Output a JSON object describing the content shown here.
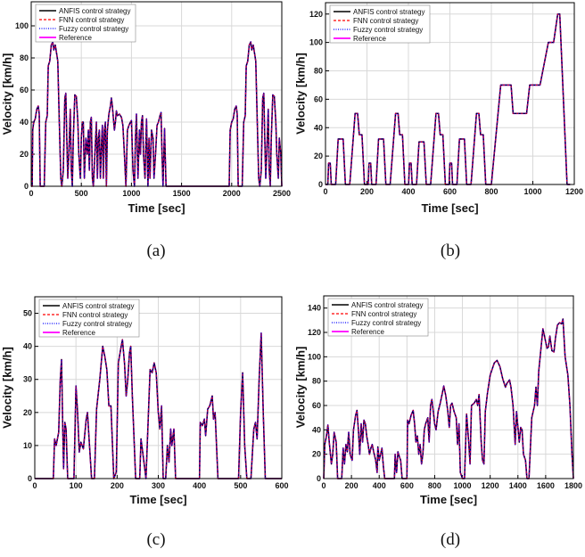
{
  "legend_entries": [
    "ANFIS control strategy",
    "FNN control strategy",
    "Fuzzy control strategy",
    "Reference"
  ],
  "series_colors": {
    "ANFIS control strategy": "#000000",
    "FNN control strategy": "#ff0000",
    "Fuzzy control strategy": "#0000ff",
    "Reference": "#ff00ff"
  },
  "chart_data": [
    {
      "id": "a",
      "caption": "(a)",
      "type": "line",
      "xlabel": "Time [sec]",
      "ylabel": "Velocity [km/h]",
      "xlim": [
        0,
        2500
      ],
      "ylim": [
        0,
        115
      ],
      "xticks": [
        0,
        500,
        1000,
        1500,
        2000,
        2500
      ],
      "yticks": [
        0,
        20,
        40,
        60,
        80,
        100
      ],
      "grid": true,
      "legend": "top-left",
      "note_series": "All four series overlap the same velocity profile",
      "x": [
        0,
        10,
        15,
        25,
        40,
        55,
        70,
        80,
        90,
        130,
        145,
        160,
        170,
        185,
        200,
        215,
        225,
        240,
        255,
        265,
        280,
        295,
        305,
        320,
        335,
        345,
        355,
        365,
        375,
        390,
        400,
        410,
        420,
        435,
        450,
        465,
        475,
        490,
        500,
        510,
        520,
        530,
        545,
        560,
        570,
        580,
        590,
        600,
        610,
        620,
        635,
        650,
        660,
        670,
        680,
        690,
        700,
        710,
        720,
        730,
        740,
        750,
        760,
        775,
        790,
        800,
        810,
        820,
        830,
        840,
        850,
        860,
        880,
        900,
        915,
        930,
        945,
        960,
        975,
        990,
        1000,
        1015,
        1030,
        1040,
        1050,
        1065,
        1080,
        1090,
        1100,
        1110,
        1120,
        1135,
        1150,
        1165,
        1175,
        1185,
        1200,
        1215,
        1225,
        1240,
        1255,
        1270,
        1285,
        1295,
        1305,
        1315,
        1330,
        1345,
        1370,
        1975,
        1985,
        2000,
        2015,
        2030,
        2045,
        2055,
        2065,
        2105,
        2120,
        2135,
        2145,
        2160,
        2175,
        2190,
        2200,
        2215,
        2230,
        2240,
        2255,
        2270,
        2280,
        2295,
        2310,
        2320,
        2330,
        2340,
        2350,
        2365,
        2375,
        2385,
        2395,
        2410,
        2425,
        2440,
        2450,
        2465,
        2475,
        2490,
        2500
      ],
      "y": [
        0,
        0,
        35,
        40,
        42,
        48,
        50,
        45,
        0,
        0,
        40,
        44,
        75,
        78,
        88,
        90,
        85,
        88,
        82,
        78,
        40,
        5,
        0,
        10,
        55,
        58,
        30,
        5,
        20,
        48,
        10,
        0,
        30,
        57,
        56,
        40,
        20,
        5,
        30,
        40,
        40,
        5,
        30,
        20,
        35,
        10,
        40,
        43,
        5,
        0,
        20,
        40,
        5,
        30,
        35,
        5,
        25,
        38,
        5,
        35,
        40,
        0,
        35,
        45,
        50,
        55,
        50,
        42,
        35,
        40,
        47,
        44,
        45,
        43,
        38,
        20,
        0,
        35,
        38,
        40,
        41,
        10,
        0,
        30,
        45,
        5,
        35,
        20,
        40,
        44,
        20,
        5,
        42,
        0,
        30,
        5,
        35,
        30,
        5,
        20,
        38,
        40,
        44,
        46,
        20,
        0,
        36,
        0,
        0,
        0,
        35,
        40,
        42,
        48,
        50,
        45,
        0,
        0,
        40,
        44,
        75,
        78,
        88,
        90,
        85,
        88,
        82,
        78,
        40,
        5,
        0,
        10,
        55,
        58,
        30,
        5,
        20,
        48,
        10,
        0,
        30,
        57,
        56,
        40,
        20,
        5,
        30,
        20,
        0
      ]
    },
    {
      "id": "b",
      "caption": "(b)",
      "type": "line",
      "xlabel": "Time [sec]",
      "ylabel": "Velocity [km/h]",
      "xlim": [
        0,
        1200
      ],
      "ylim": [
        0,
        128
      ],
      "xticks": [
        0,
        200,
        400,
        600,
        800,
        1000,
        1200
      ],
      "yticks": [
        0,
        20,
        40,
        60,
        80,
        100,
        120
      ],
      "grid": true,
      "legend": "top-left",
      "x": [
        0,
        11,
        15,
        23,
        28,
        49,
        61,
        85,
        96,
        117,
        143,
        155,
        163,
        176,
        188,
        195,
        206,
        210,
        218,
        223,
        244,
        256,
        280,
        291,
        312,
        338,
        350,
        358,
        371,
        383,
        390,
        401,
        405,
        413,
        418,
        439,
        451,
        475,
        486,
        507,
        533,
        545,
        553,
        566,
        578,
        585,
        596,
        600,
        608,
        613,
        634,
        646,
        670,
        681,
        702,
        728,
        740,
        748,
        761,
        773,
        800,
        845,
        895,
        905,
        970,
        985,
        1035,
        1075,
        1100,
        1120,
        1130,
        1165,
        1180
      ],
      "y": [
        0,
        0,
        15,
        15,
        0,
        0,
        32,
        32,
        0,
        0,
        50,
        50,
        35,
        35,
        0,
        0,
        0,
        15,
        15,
        0,
        0,
        32,
        32,
        0,
        0,
        50,
        50,
        35,
        35,
        0,
        0,
        0,
        15,
        15,
        0,
        0,
        30,
        30,
        0,
        0,
        50,
        50,
        35,
        35,
        0,
        0,
        0,
        15,
        15,
        0,
        0,
        32,
        32,
        0,
        0,
        50,
        50,
        35,
        35,
        0,
        0,
        70,
        70,
        50,
        50,
        70,
        70,
        100,
        100,
        120,
        120,
        0,
        0
      ]
    },
    {
      "id": "c",
      "caption": "(c)",
      "type": "line",
      "xlabel": "Time [sec]",
      "ylabel": "Velocity [km/h]",
      "xlim": [
        0,
        600
      ],
      "ylim": [
        0,
        55
      ],
      "xticks": [
        0,
        100,
        200,
        300,
        400,
        500,
        600
      ],
      "yticks": [
        0,
        10,
        20,
        30,
        40,
        50
      ],
      "grid": true,
      "legend": "top-left",
      "x": [
        0,
        45,
        48,
        52,
        58,
        62,
        65,
        68,
        70,
        73,
        76,
        80,
        95,
        100,
        104,
        108,
        112,
        118,
        125,
        128,
        132,
        138,
        145,
        150,
        158,
        165,
        170,
        175,
        180,
        185,
        192,
        198,
        203,
        210,
        213,
        218,
        222,
        226,
        230,
        233,
        237,
        245,
        255,
        258,
        262,
        270,
        280,
        285,
        290,
        295,
        300,
        304,
        308,
        312,
        318,
        322,
        326,
        330,
        333,
        338,
        342,
        400,
        402,
        407,
        412,
        415,
        420,
        425,
        431,
        434,
        438,
        445,
        495,
        500,
        505,
        510,
        515,
        525,
        532,
        536,
        540,
        545,
        550,
        555,
        560,
        600
      ],
      "y": [
        0,
        0,
        12,
        10,
        14,
        30,
        36,
        15,
        3,
        17,
        15,
        0,
        0,
        28,
        20,
        8,
        11,
        9,
        18,
        20,
        12,
        0,
        0,
        21,
        30,
        40,
        37,
        33,
        22,
        22,
        0,
        2,
        35,
        40,
        42,
        35,
        25,
        30,
        38,
        40,
        25,
        0,
        0,
        12,
        8,
        0,
        33,
        32,
        35,
        32,
        20,
        15,
        22,
        0,
        0,
        10,
        5,
        15,
        10,
        15,
        0,
        0,
        17,
        16,
        18,
        13,
        21,
        22,
        25,
        18,
        20,
        0,
        0,
        20,
        32,
        10,
        0,
        0,
        15,
        17,
        12,
        30,
        44,
        20,
        0,
        0
      ]
    },
    {
      "id": "d",
      "caption": "(d)",
      "type": "line",
      "xlabel": "Time [sec]",
      "ylabel": "Velocity [km/h]",
      "xlim": [
        0,
        1800
      ],
      "ylim": [
        0,
        150
      ],
      "xticks": [
        0,
        200,
        400,
        600,
        800,
        1000,
        1200,
        1400,
        1600,
        1800
      ],
      "yticks": [
        0,
        20,
        40,
        60,
        80,
        100,
        120,
        140
      ],
      "grid": true,
      "legend": "top-left",
      "x": [
        0,
        8,
        20,
        30,
        40,
        55,
        65,
        75,
        90,
        100,
        130,
        140,
        150,
        160,
        170,
        180,
        190,
        205,
        215,
        230,
        240,
        250,
        260,
        270,
        280,
        290,
        300,
        310,
        320,
        330,
        340,
        350,
        360,
        375,
        385,
        390,
        400,
        410,
        420,
        430,
        440,
        510,
        515,
        525,
        535,
        545,
        555,
        565,
        600,
        605,
        615,
        630,
        645,
        655,
        665,
        675,
        685,
        695,
        705,
        715,
        725,
        735,
        750,
        760,
        770,
        780,
        790,
        800,
        810,
        825,
        840,
        855,
        865,
        880,
        895,
        905,
        915,
        925,
        940,
        955,
        965,
        975,
        985,
        1000,
        1015,
        1030,
        1045,
        1055,
        1065,
        1085,
        1100,
        1110,
        1120,
        1135,
        1145,
        1155,
        1165,
        1180,
        1200,
        1230,
        1250,
        1270,
        1290,
        1310,
        1320,
        1340,
        1350,
        1365,
        1380,
        1390,
        1400,
        1410,
        1420,
        1430,
        1440,
        1455,
        1465,
        1480,
        1500,
        1520,
        1530,
        1540,
        1550,
        1565,
        1580,
        1595,
        1610,
        1620,
        1630,
        1645,
        1660,
        1670,
        1685,
        1700,
        1715,
        1725,
        1740,
        1760,
        1775,
        1790,
        1800
      ],
      "y": [
        0,
        28,
        35,
        44,
        30,
        12,
        20,
        38,
        30,
        0,
        0,
        25,
        12,
        28,
        22,
        38,
        20,
        15,
        40,
        52,
        56,
        40,
        20,
        45,
        30,
        48,
        45,
        35,
        28,
        20,
        25,
        28,
        22,
        15,
        5,
        26,
        15,
        20,
        25,
        10,
        0,
        0,
        20,
        5,
        22,
        18,
        15,
        0,
        0,
        48,
        45,
        52,
        56,
        45,
        30,
        35,
        20,
        28,
        12,
        20,
        40,
        45,
        50,
        30,
        60,
        65,
        55,
        45,
        40,
        55,
        62,
        70,
        76,
        68,
        55,
        42,
        60,
        62,
        55,
        50,
        28,
        45,
        5,
        0,
        0,
        53,
        30,
        12,
        60,
        62,
        65,
        60,
        69,
        30,
        15,
        12,
        55,
        70,
        85,
        95,
        97,
        92,
        82,
        75,
        78,
        81,
        75,
        60,
        28,
        55,
        42,
        30,
        42,
        40,
        20,
        15,
        0,
        0,
        50,
        60,
        75,
        60,
        88,
        105,
        123,
        115,
        107,
        108,
        117,
        105,
        104,
        115,
        126,
        128,
        127,
        131,
        100,
        85,
        60,
        20,
        0
      ]
    }
  ]
}
